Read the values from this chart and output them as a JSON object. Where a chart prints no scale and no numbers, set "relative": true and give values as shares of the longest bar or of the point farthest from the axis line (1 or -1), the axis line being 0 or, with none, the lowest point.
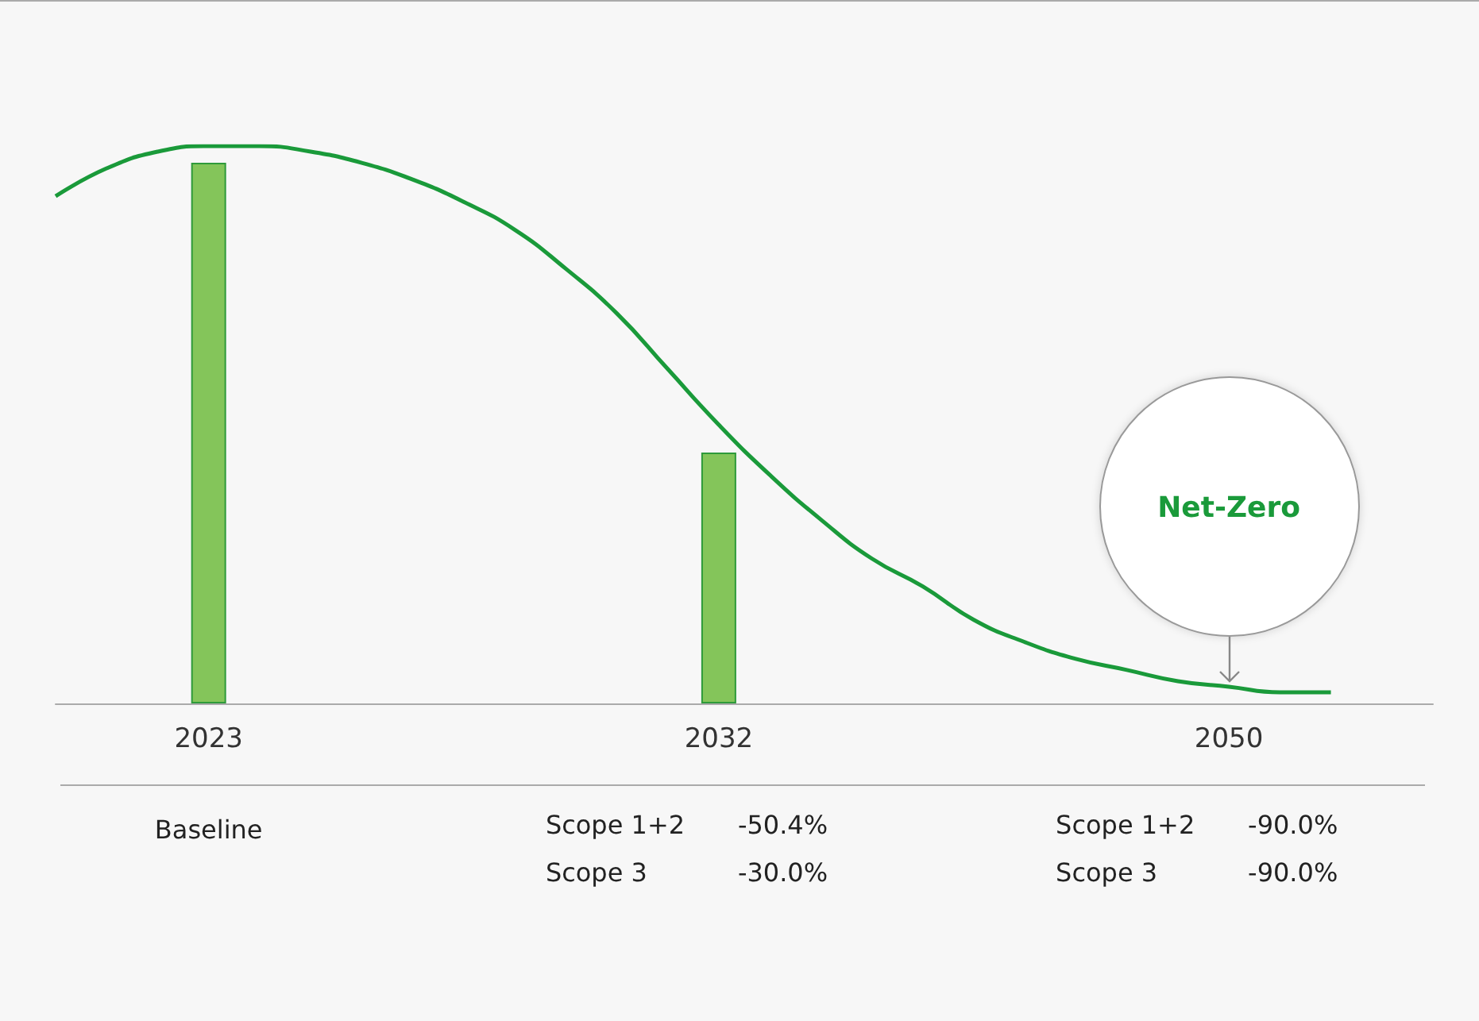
{
  "chart_data": {
    "type": "bar",
    "relative": true,
    "marker": "none",
    "categories": [
      null,
      null,
      null,
      "2023",
      null,
      null,
      null,
      null,
      null,
      null,
      null,
      null,
      null,
      "2032",
      null,
      null,
      null,
      null,
      null,
      null,
      null,
      null,
      null,
      "2050",
      null,
      null,
      null,
      null
    ],
    "series": [
      {
        "color": "#84c55a",
        "values": [
          null,
          null,
          null,
          0.97,
          null,
          null,
          null,
          null,
          null,
          null,
          null,
          null,
          null,
          0.45,
          null,
          null,
          null,
          null,
          null,
          null,
          null,
          null,
          null,
          null,
          null,
          null,
          null,
          null
        ]
      },
      {
        "type": "line",
        "color": "#1a9a3a",
        "values": [
          0.91,
          0.96,
          0.99,
          1.0,
          1.0,
          0.99,
          0.97,
          0.94,
          0.9,
          0.85,
          0.78,
          0.7,
          0.6,
          0.5,
          0.41,
          0.33,
          0.26,
          0.21,
          0.15,
          0.11,
          0.08,
          0.06,
          0.04,
          0.03,
          0.02,
          0.02,
          null,
          null
        ]
      }
    ],
    "annotations": [
      "Net-Zero",
      "Baseline",
      "Scope 1+2",
      "-50.4%",
      "Scope 3",
      "-30.0%",
      "Scope 1+2",
      "-90.0%",
      "Scope 3",
      "-90.0%"
    ]
  }
}
